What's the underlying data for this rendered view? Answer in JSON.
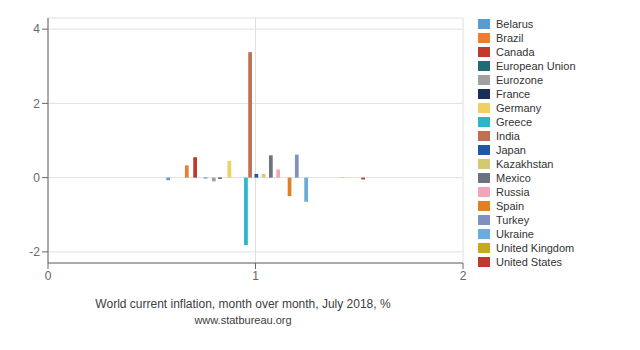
{
  "chart_data": {
    "type": "bar",
    "title": "World current inflation, month over month, July 2018, %",
    "subtitle": "www.statbureau.org",
    "xlim": [
      0,
      2
    ],
    "xticks": [
      0,
      1,
      2
    ],
    "ylim": [
      -2.3,
      4.3
    ],
    "yticks": [
      -2,
      0,
      2,
      4
    ],
    "grid": true,
    "legend": "right",
    "series": [
      {
        "name": "Belarus",
        "color": "#5b9bd5",
        "x": [
          0.58
        ],
        "values": [
          -0.07
        ]
      },
      {
        "name": "Brazil",
        "color": "#ed7d31",
        "x": [
          0.67
        ],
        "values": [
          0.33
        ]
      },
      {
        "name": "Canada",
        "color": "#c0392b",
        "x": [
          0.71
        ],
        "values": [
          0.55
        ]
      },
      {
        "name": "European Union",
        "color": "#1f6b77",
        "x": [
          0.76
        ],
        "values": [
          -0.02
        ]
      },
      {
        "name": "Eurozone",
        "color": "#a0a0a0",
        "x": [
          0.8
        ],
        "values": [
          -0.1
        ]
      },
      {
        "name": "France",
        "color": "#1a2e5a",
        "x": [
          0.83
        ],
        "values": [
          -0.03
        ]
      },
      {
        "name": "Germany",
        "color": "#f0d060",
        "x": [
          0.875
        ],
        "values": [
          0.45
        ]
      },
      {
        "name": "Greece",
        "color": "#2ab7ca",
        "x": [
          0.955
        ],
        "values": [
          -1.82
        ]
      },
      {
        "name": "India",
        "color": "#c07050",
        "x": [
          0.975
        ],
        "values": [
          3.38
        ]
      },
      {
        "name": "Japan",
        "color": "#2058a8",
        "x": [
          1.005
        ],
        "values": [
          0.1
        ]
      },
      {
        "name": "Kazakhstan",
        "color": "#d4c870",
        "x": [
          1.04
        ],
        "values": [
          0.1
        ]
      },
      {
        "name": "Mexico",
        "color": "#6b7280",
        "x": [
          1.075
        ],
        "values": [
          0.6
        ]
      },
      {
        "name": "Russia",
        "color": "#f0a8b8",
        "x": [
          1.11
        ],
        "values": [
          0.22
        ]
      },
      {
        "name": "Spain",
        "color": "#e08020",
        "x": [
          1.165
        ],
        "values": [
          -0.5
        ]
      },
      {
        "name": "Turkey",
        "color": "#8090c0",
        "x": [
          1.2
        ],
        "values": [
          0.62
        ]
      },
      {
        "name": "Ukraine",
        "color": "#6aacdc",
        "x": [
          1.245
        ],
        "values": [
          -0.65
        ]
      },
      {
        "name": "United Kingdom",
        "color": "#c8a820",
        "x": [
          1.42
        ],
        "values": [
          -0.01
        ]
      },
      {
        "name": "United States",
        "color": "#c0392b",
        "x": [
          1.52
        ],
        "values": [
          -0.05
        ]
      }
    ]
  }
}
